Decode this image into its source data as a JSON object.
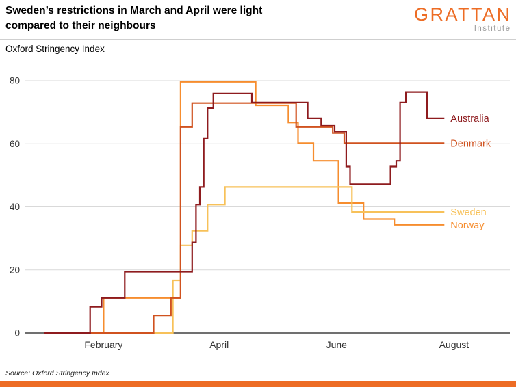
{
  "header": {
    "title_line1": "Sweden’s restrictions in March and April were light",
    "title_line2": "compared to their neighbours",
    "logo": {
      "name": "GRATTAN",
      "sub": "Institute"
    }
  },
  "footer": {
    "source": "Source: Oxford Stringency Index"
  },
  "colors": {
    "brand_orange": "#ED6C24",
    "australia": "#8E1B1E",
    "denmark": "#D0521F",
    "sweden": "#F7C159",
    "norway": "#F68D2E",
    "grid": "#d9d9d9",
    "axis": "#1a1a1a"
  },
  "chart_data": {
    "type": "line",
    "title": "Sweden’s restrictions in March and April were light compared to their neighbours",
    "subtitle": "Oxford Stringency Index",
    "xlabel": "",
    "ylabel": "Oxford Stringency Index",
    "ylim": [
      0,
      80
    ],
    "y_ticks": [
      0,
      20,
      40,
      60,
      80
    ],
    "grid": "horizontal",
    "legend_position": "right-of-lines",
    "x_unit": "days since 2020-01-01",
    "x_domain": [
      -10,
      242
    ],
    "x_ticks": [
      {
        "day": 31,
        "label": "February"
      },
      {
        "day": 91,
        "label": "April"
      },
      {
        "day": 152,
        "label": "June"
      },
      {
        "day": 213,
        "label": "August"
      }
    ],
    "series": [
      {
        "name": "Australia",
        "color": "#8E1B1E",
        "points": [
          [
            0,
            0
          ],
          [
            24,
            8.3
          ],
          [
            30,
            11.1
          ],
          [
            42,
            19.4
          ],
          [
            77,
            28.7
          ],
          [
            79,
            40.7
          ],
          [
            81,
            46.3
          ],
          [
            83,
            61.6
          ],
          [
            85,
            71.3
          ],
          [
            88,
            75.9
          ],
          [
            108,
            73.1
          ],
          [
            137,
            68.1
          ],
          [
            144,
            65.7
          ],
          [
            151,
            63.9
          ],
          [
            157,
            52.8
          ],
          [
            159,
            47.2
          ],
          [
            180,
            52.8
          ],
          [
            183,
            54.6
          ],
          [
            185,
            73.1
          ],
          [
            188,
            76.4
          ],
          [
            199,
            68.1
          ],
          [
            208,
            68.1
          ]
        ]
      },
      {
        "name": "Denmark",
        "color": "#D0521F",
        "points": [
          [
            0,
            0
          ],
          [
            57,
            5.6
          ],
          [
            66,
            11.1
          ],
          [
            71,
            65.3
          ],
          [
            77,
            72.9
          ],
          [
            131,
            65.3
          ],
          [
            150,
            63.4
          ],
          [
            156,
            60.2
          ],
          [
            208,
            60.2
          ]
        ]
      },
      {
        "name": "Sweden",
        "color": "#F7C159",
        "points": [
          [
            0,
            0
          ],
          [
            67,
            16.7
          ],
          [
            71,
            27.8
          ],
          [
            77,
            32.4
          ],
          [
            85,
            40.7
          ],
          [
            94,
            46.3
          ],
          [
            160,
            38.4
          ],
          [
            208,
            38.4
          ]
        ]
      },
      {
        "name": "Norway",
        "color": "#F68D2E",
        "points": [
          [
            0,
            0
          ],
          [
            31,
            11.1
          ],
          [
            71,
            79.6
          ],
          [
            110,
            72.2
          ],
          [
            127,
            66.7
          ],
          [
            132,
            60.2
          ],
          [
            140,
            54.6
          ],
          [
            153,
            41.2
          ],
          [
            166,
            36.1
          ],
          [
            182,
            34.3
          ],
          [
            208,
            34.3
          ]
        ]
      }
    ]
  }
}
